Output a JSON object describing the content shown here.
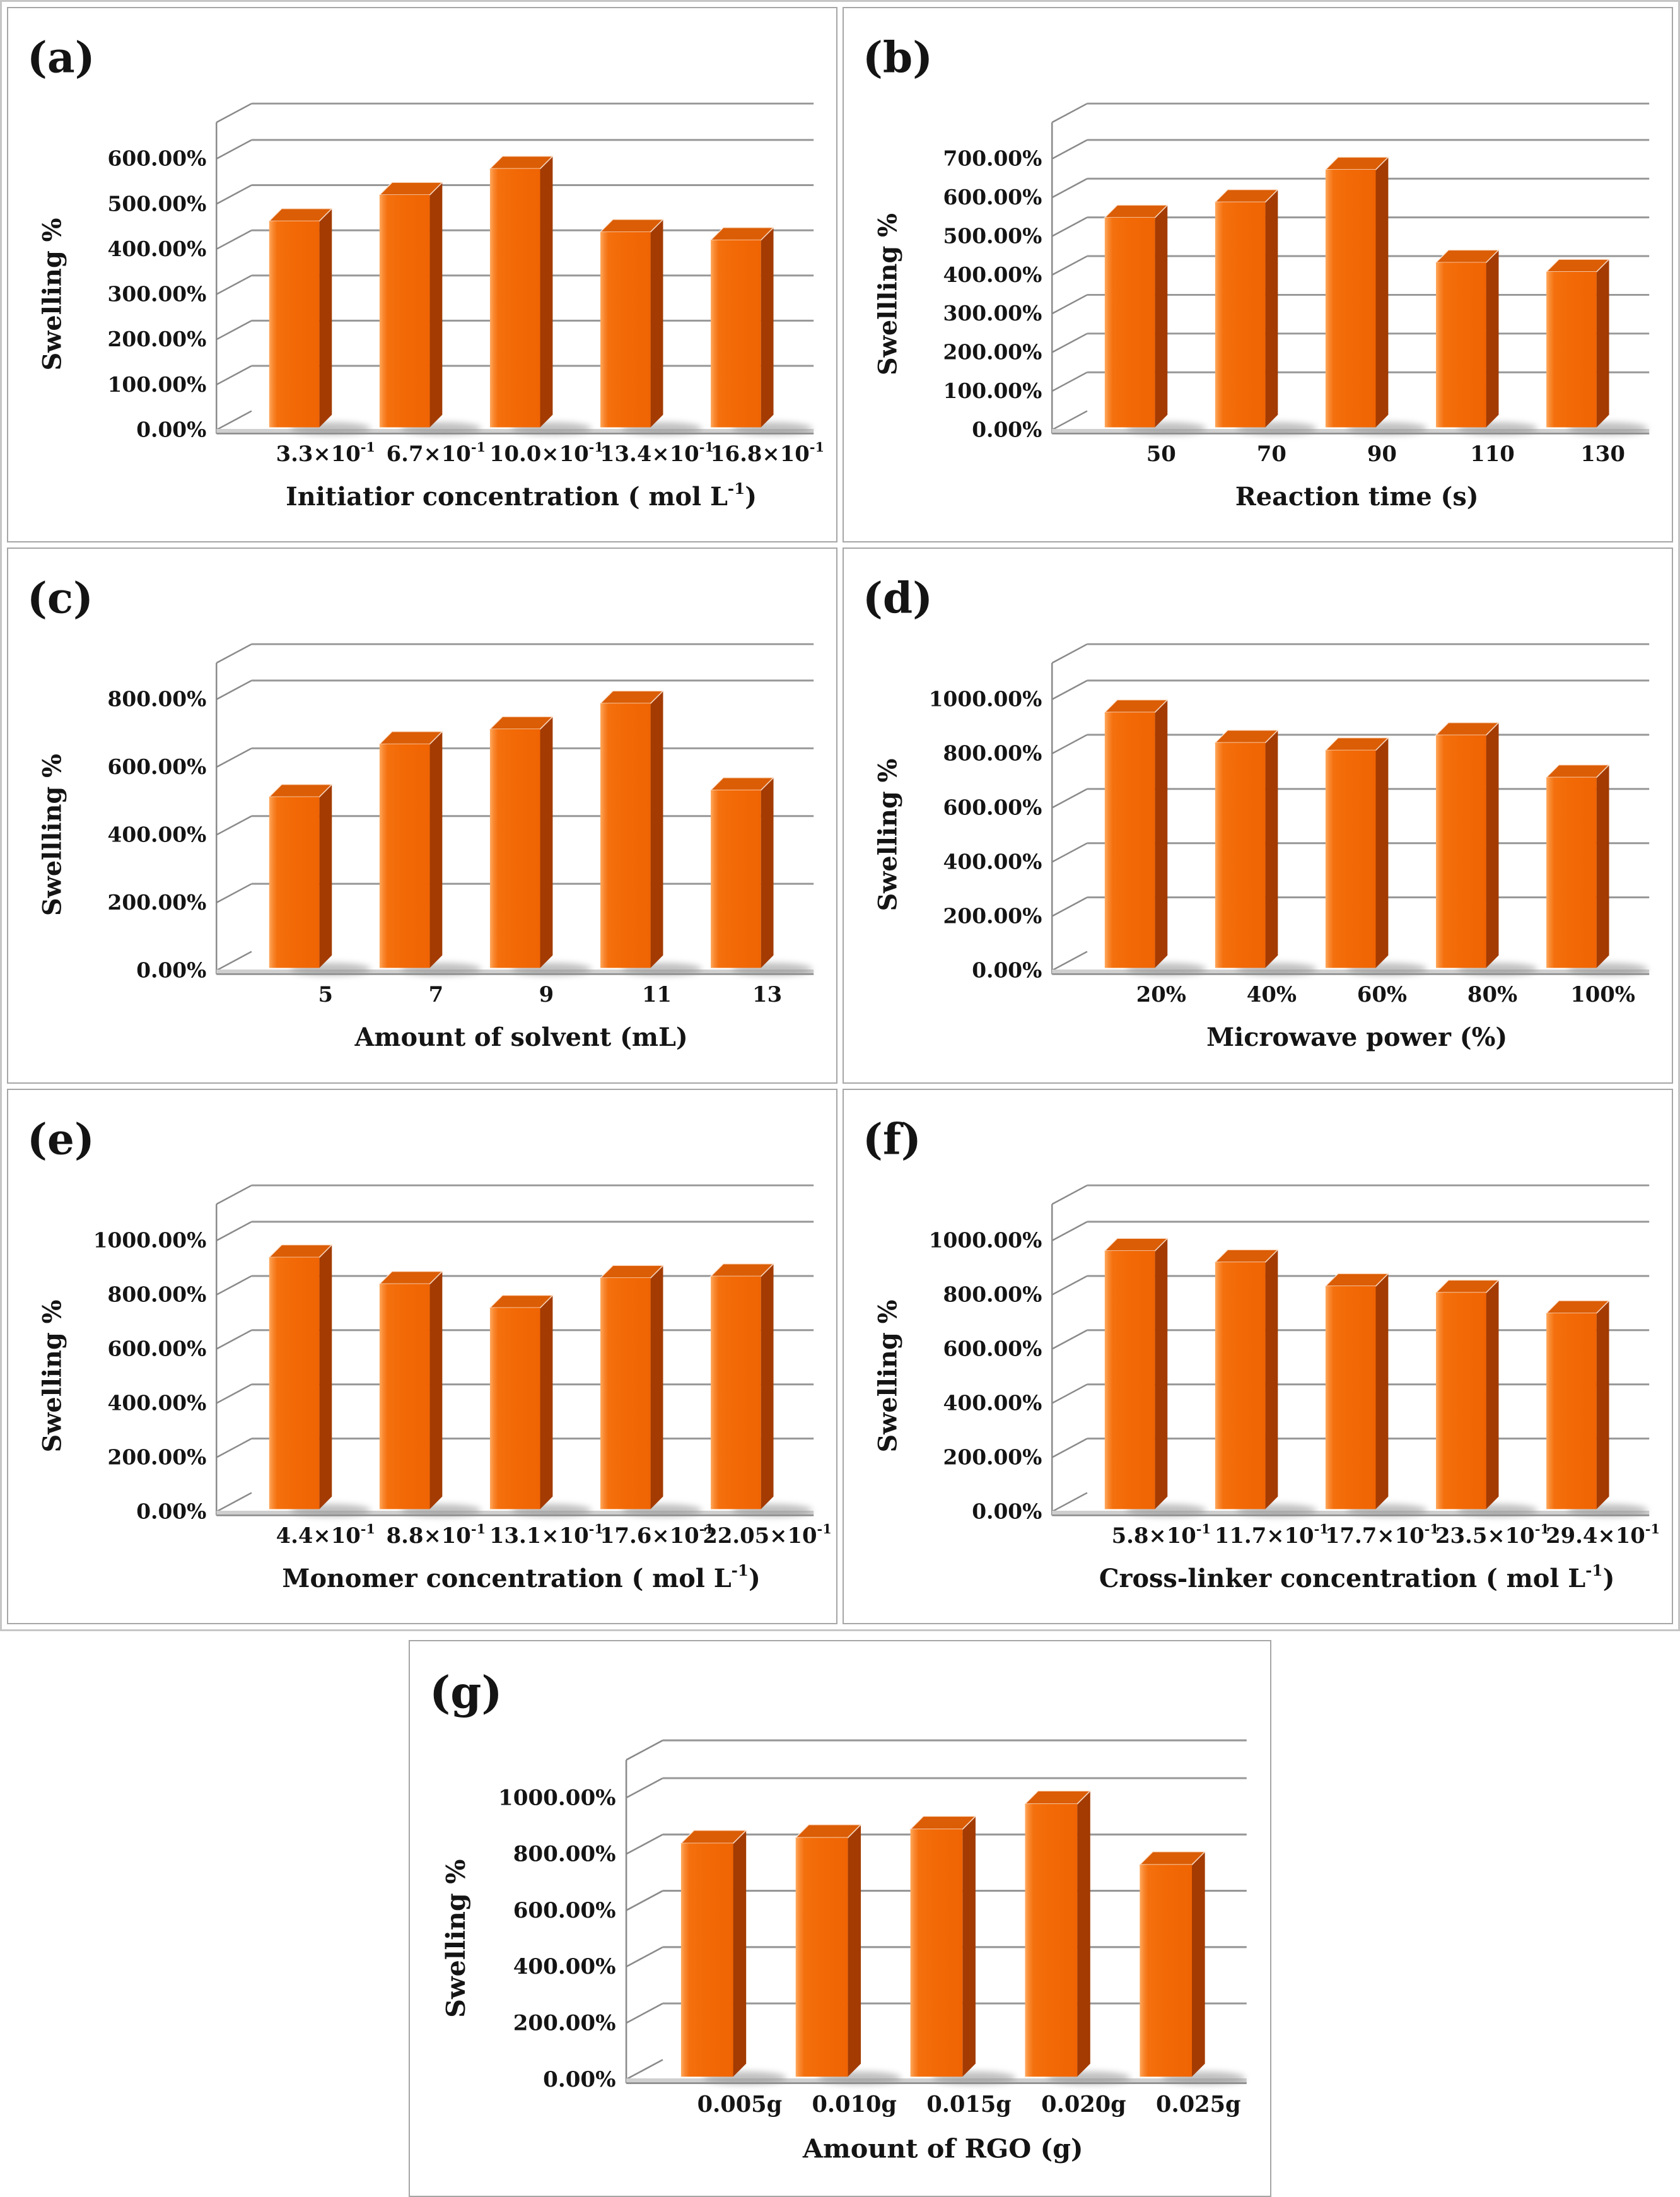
{
  "figure": {
    "description": "Seven-panel 3D bar chart figure of Swelling % versus synthesis parameters"
  },
  "style": {
    "bar_front": "#F26906",
    "bar_front_dark": "#F06403",
    "bar_front_mid": "#F4700E",
    "bar_highlight": "#FFA95E",
    "bar_highlight2": "#F98A33",
    "bar_side": "#A33B02",
    "bar_top": "#DB5D05",
    "gridline": "#979797",
    "axis_line": "#8a8a8a",
    "floor_band": "#cfcfcf",
    "shadow": "#8c8c8c",
    "text_color": "#141414",
    "panel_border": "#a6a6a6",
    "outer_border": "#c6c6c6"
  },
  "chart_data": [
    {
      "type": "bar",
      "panel_letter": "(a)",
      "ylabel": "Swelling %",
      "xlabel": "Initiatior concentration ( mol L^{-1})",
      "ylim": [
        0,
        600
      ],
      "ystep": 100,
      "ytick_labels": [
        "0.00%",
        "100.00%",
        "200.00%",
        "300.00%",
        "400.00%",
        "500.00%",
        "600.00%"
      ],
      "categories": [
        "3.3×10^{-1}",
        "6.7×10^{-1}",
        "10.0×10^{-1}",
        "13.4×10^{-1}",
        "16.8×10^{-1}"
      ],
      "values": [
        462,
        520,
        578,
        438,
        420
      ],
      "grid": true,
      "legend": "none"
    },
    {
      "type": "bar",
      "panel_letter": "(b)",
      "ylabel": "Swellling %",
      "xlabel": "Reaction time (s)",
      "ylim": [
        0,
        700
      ],
      "ystep": 100,
      "ytick_labels": [
        "0.00%",
        "100.00%",
        "200.00%",
        "300.00%",
        "400.00%",
        "500.00%",
        "600.00%",
        "700.00%"
      ],
      "categories": [
        "50",
        "70",
        "90",
        "110",
        "130"
      ],
      "values": [
        548,
        588,
        672,
        432,
        408
      ],
      "grid": true,
      "legend": "none"
    },
    {
      "type": "bar",
      "panel_letter": "(c)",
      "ylabel": "Swellling %",
      "xlabel": "Amount of solvent (mL)",
      "ylim": [
        0,
        800
      ],
      "ystep": 200,
      "ytick_labels": [
        "0.00%",
        "200.00%",
        "400.00%",
        "600.00%",
        "800.00%"
      ],
      "categories": [
        "5",
        "7",
        "9",
        "11",
        "13"
      ],
      "values": [
        512,
        668,
        712,
        788,
        532
      ],
      "grid": true,
      "legend": "none"
    },
    {
      "type": "bar",
      "panel_letter": "(d)",
      "ylabel": "Swelling %",
      "xlabel": "Microwave power (%)",
      "ylim": [
        0,
        1000
      ],
      "ystep": 200,
      "ytick_labels": [
        "0.00%",
        "200.00%",
        "400.00%",
        "600.00%",
        "800.00%",
        "1000.00%"
      ],
      "categories": [
        "20%",
        "40%",
        "60%",
        "80%",
        "100%"
      ],
      "values": [
        952,
        840,
        812,
        868,
        712
      ],
      "grid": true,
      "legend": "none"
    },
    {
      "type": "bar",
      "panel_letter": "(e)",
      "ylabel": "Swelling %",
      "xlabel": "Monomer concentration ( mol L^{-1})",
      "ylim": [
        0,
        1000
      ],
      "ystep": 200,
      "ytick_labels": [
        "0.00%",
        "200.00%",
        "400.00%",
        "600.00%",
        "800.00%",
        "1000.00%"
      ],
      "categories": [
        "4.4×10^{-1}",
        "8.8×10^{-1}",
        "13.1×10^{-1}",
        "17.6×10^{-1}",
        "22.05×10^{-1}"
      ],
      "values": [
        938,
        840,
        752,
        862,
        868
      ],
      "grid": true,
      "legend": "none"
    },
    {
      "type": "bar",
      "panel_letter": "(f)",
      "ylabel": "Swelling %",
      "xlabel": "Cross-linker concentration ( mol L^{-1})",
      "ylim": [
        0,
        1000
      ],
      "ystep": 200,
      "ytick_labels": [
        "0.00%",
        "200.00%",
        "400.00%",
        "600.00%",
        "800.00%",
        "1000.00%"
      ],
      "categories": [
        "5.8×10^{-1}",
        "11.7×10^{-1}",
        "17.7×10^{-1}",
        "23.5×10^{-1}",
        "29.4×10^{-1}"
      ],
      "values": [
        962,
        920,
        832,
        808,
        732
      ],
      "grid": true,
      "legend": "none"
    },
    {
      "type": "bar",
      "panel_letter": "(g)",
      "ylabel": "Swelling %",
      "xlabel": "Amount of RGO (g)",
      "ylim": [
        0,
        1000
      ],
      "ystep": 200,
      "ytick_labels": [
        "0.00%",
        "200.00%",
        "400.00%",
        "600.00%",
        "800.00%",
        "1000.00%"
      ],
      "categories": [
        "0.005g",
        "0.010g",
        "0.015g",
        "0.020g",
        "0.025g"
      ],
      "values": [
        838,
        858,
        888,
        978,
        762
      ],
      "grid": true,
      "legend": "none"
    }
  ]
}
